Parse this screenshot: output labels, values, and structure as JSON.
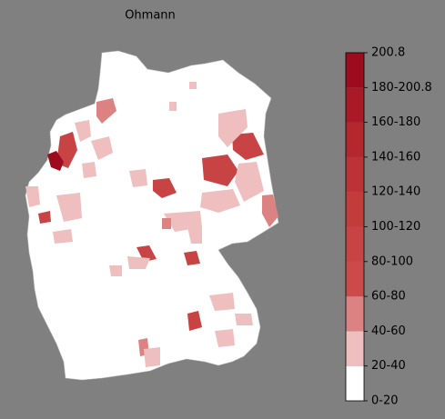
{
  "title": "Ohmann",
  "colorbar": {
    "labels": [
      "0-20",
      "20-40",
      "40-60",
      "60-80",
      "80-100",
      "100-120",
      "120-140",
      "140-160",
      "160-180",
      "180-200.8",
      "200.8"
    ],
    "colors": [
      "#ffffff",
      "#efbfbf",
      "#dc8282",
      "#cc4a4a",
      "#c84444",
      "#c33c3c",
      "#bc3236",
      "#b4272d",
      "#aa1a26",
      "#9c0c1e"
    ]
  }
}
